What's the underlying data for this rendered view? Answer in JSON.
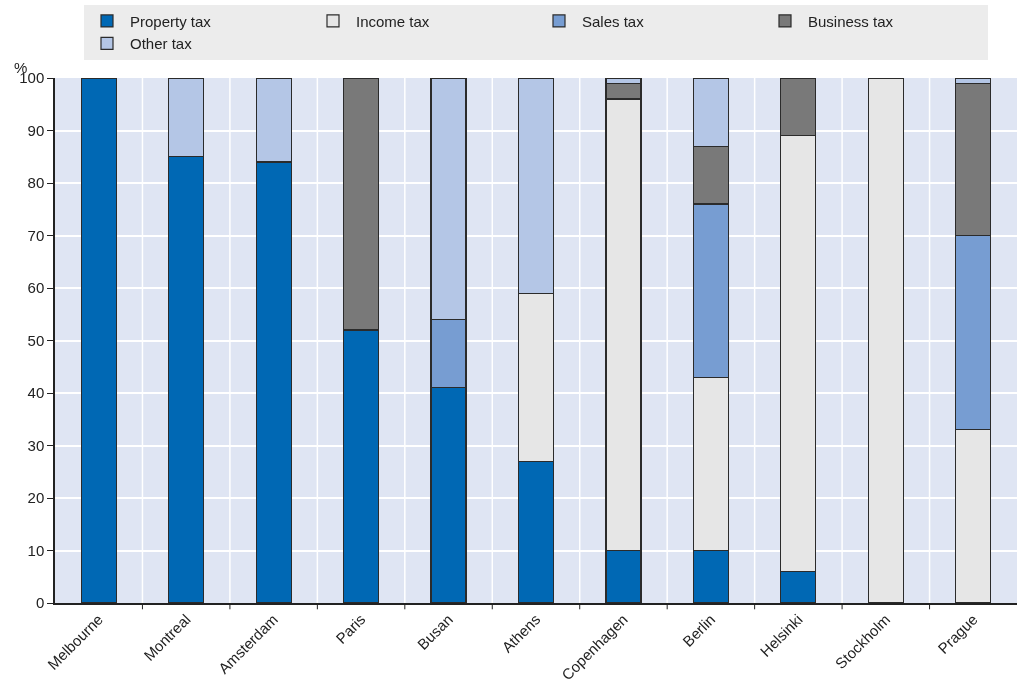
{
  "chart_data": {
    "type": "bar",
    "stacked": true,
    "ylabel": "%",
    "categories": [
      "Melbourne",
      "Montreal",
      "Amsterdam",
      "Paris",
      "Busan",
      "Athens",
      "Copenhagen",
      "Berlin",
      "Helsinki",
      "Stockholm",
      "Prague"
    ],
    "series": [
      {
        "name": "Property tax",
        "color": "#0068b4",
        "values": [
          100,
          85,
          84,
          52,
          41,
          27,
          10,
          10,
          6,
          null,
          null
        ]
      },
      {
        "name": "Income tax",
        "color": "#e6e6e6",
        "values": [
          null,
          null,
          null,
          null,
          null,
          32,
          86,
          33,
          83,
          100,
          33
        ]
      },
      {
        "name": "Sales tax",
        "color": "#779dd2",
        "values": [
          null,
          null,
          null,
          null,
          13,
          null,
          null,
          33,
          null,
          null,
          37
        ]
      },
      {
        "name": "Business tax",
        "color": "#797979",
        "values": [
          null,
          null,
          null,
          48,
          null,
          null,
          3,
          11,
          11,
          null,
          29
        ]
      },
      {
        "name": "Other tax",
        "color": "#b4c6e6",
        "values": [
          null,
          15,
          16,
          null,
          46,
          41,
          1,
          13,
          null,
          null,
          1
        ]
      }
    ],
    "ylim": [
      0,
      100
    ],
    "yticks": [
      0,
      10,
      20,
      30,
      40,
      50,
      60,
      70,
      80,
      90,
      100
    ],
    "grid": true,
    "legend": "top"
  }
}
